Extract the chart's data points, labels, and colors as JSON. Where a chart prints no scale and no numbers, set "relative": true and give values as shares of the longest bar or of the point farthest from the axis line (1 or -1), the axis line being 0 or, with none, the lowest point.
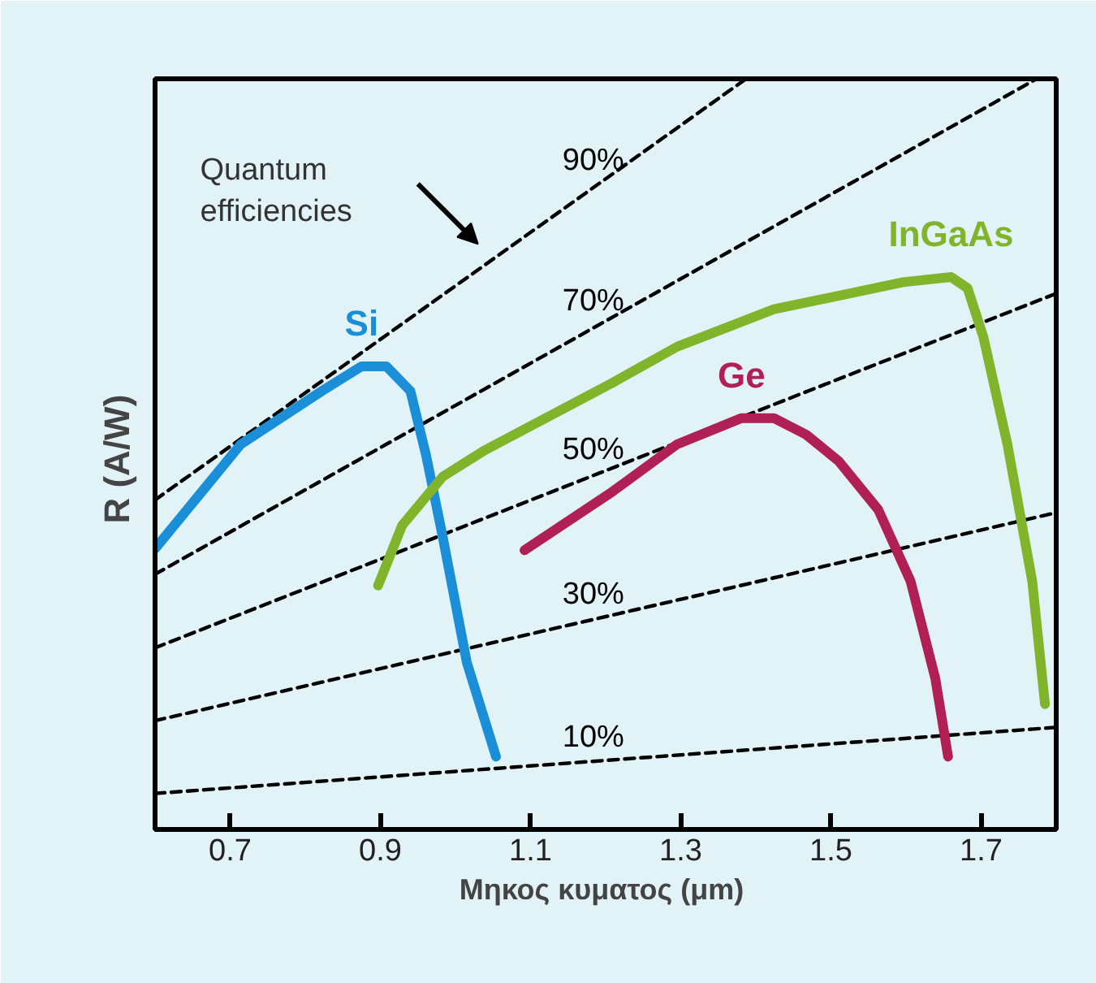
{
  "chart_data": {
    "type": "line",
    "relative": true,
    "xlabel": "Μηκος κυματος  (μm)",
    "ylabel": "R  (A/W)",
    "xlim": [
      0.6,
      1.8
    ],
    "xticks": [
      0.7,
      0.9,
      1.1,
      1.3,
      1.5,
      1.7
    ],
    "grid": false,
    "annotations": [
      "Quantum\nefficiencies"
    ],
    "series": [
      {
        "name": "90%",
        "color": "#000000",
        "line_style": "dashed",
        "x": [
          0.6,
          1.387
        ],
        "values": [
          0.439,
          1.0
        ]
      },
      {
        "name": "70%",
        "color": "#000000",
        "line_style": "dashed",
        "x": [
          0.6,
          1.774
        ],
        "values": [
          0.34,
          1.0
        ]
      },
      {
        "name": "50%",
        "color": "#000000",
        "line_style": "dashed",
        "x": [
          0.6,
          1.8
        ],
        "values": [
          0.242,
          0.714
        ]
      },
      {
        "name": "30%",
        "color": "#000000",
        "line_style": "dashed",
        "x": [
          0.6,
          1.8
        ],
        "values": [
          0.145,
          0.422
        ]
      },
      {
        "name": "10%",
        "color": "#000000",
        "line_style": "dashed",
        "x": [
          0.6,
          1.8
        ],
        "values": [
          0.048,
          0.136
        ]
      },
      {
        "name": "Si",
        "color": "#1a8fd8",
        "line_style": "solid",
        "x": [
          0.6,
          0.714,
          0.822,
          0.875,
          0.908,
          0.94,
          0.961,
          0.983,
          1.015,
          1.054
        ],
        "values": [
          0.374,
          0.513,
          0.584,
          0.617,
          0.617,
          0.584,
          0.498,
          0.39,
          0.223,
          0.097
        ]
      },
      {
        "name": "InGaAs",
        "color": "#80b42a",
        "line_style": "solid",
        "x": [
          0.897,
          0.929,
          0.983,
          1.037,
          1.209,
          1.295,
          1.424,
          1.596,
          1.66,
          1.682,
          1.703,
          1.735,
          1.768,
          1.785
        ],
        "values": [
          0.325,
          0.405,
          0.47,
          0.504,
          0.595,
          0.643,
          0.693,
          0.729,
          0.736,
          0.721,
          0.656,
          0.513,
          0.331,
          0.167
        ]
      },
      {
        "name": "Ge",
        "color": "#b02055",
        "line_style": "solid",
        "x": [
          1.092,
          1.209,
          1.295,
          1.381,
          1.424,
          1.467,
          1.51,
          1.563,
          1.606,
          1.639,
          1.656
        ],
        "values": [
          0.372,
          0.45,
          0.513,
          0.548,
          0.548,
          0.526,
          0.491,
          0.426,
          0.331,
          0.201,
          0.097
        ]
      }
    ]
  }
}
